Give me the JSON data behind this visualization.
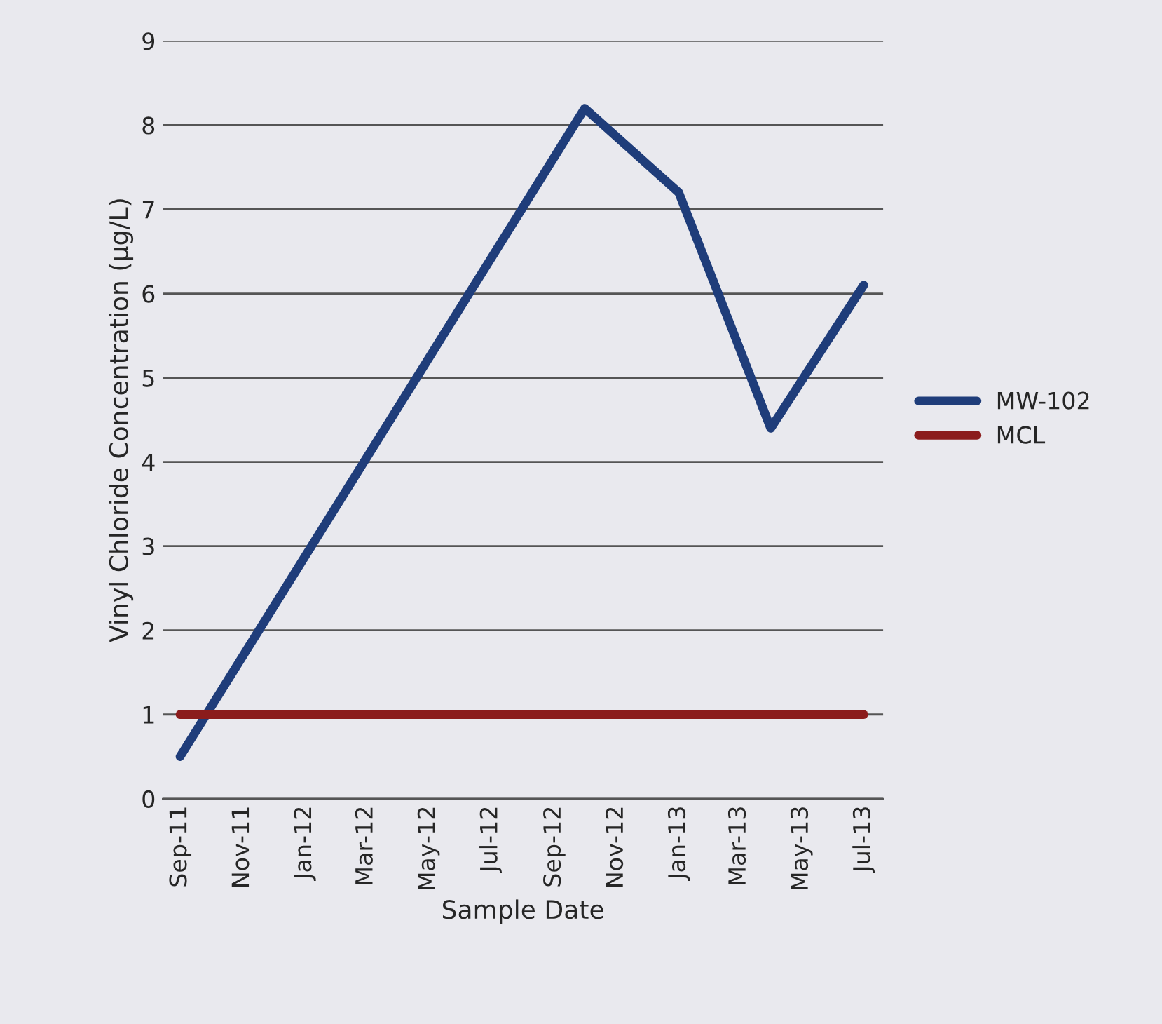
{
  "chart_data": {
    "type": "line",
    "xlabel": "Sample Date",
    "ylabel": "Vinyl Chloride Concentration (µg/L)",
    "series": [
      {
        "name": "MW-102",
        "color": "#1f3d7a",
        "x": [
          "2011-09-01",
          "2012-10-01",
          "2013-01-01",
          "2013-04-01",
          "2013-07-01"
        ],
        "values": [
          0.5,
          8.2,
          7.2,
          4.4,
          6.1
        ]
      },
      {
        "name": "MCL",
        "color": "#8b1c1c",
        "x": [
          "2011-09-01",
          "2012-10-01",
          "2013-01-01",
          "2013-04-01",
          "2013-07-01"
        ],
        "values": [
          1,
          1,
          1,
          1,
          1
        ]
      }
    ],
    "xlim": [
      "2011-08-15",
      "2013-07-20"
    ],
    "xticks": [
      {
        "value": "2011-09-01",
        "label": "Sep-11"
      },
      {
        "value": "2011-11-01",
        "label": "Nov-11"
      },
      {
        "value": "2012-01-01",
        "label": "Jan-12"
      },
      {
        "value": "2012-03-01",
        "label": "Mar-12"
      },
      {
        "value": "2012-05-01",
        "label": "May-12"
      },
      {
        "value": "2012-07-01",
        "label": "Jul-12"
      },
      {
        "value": "2012-09-01",
        "label": "Sep-12"
      },
      {
        "value": "2012-11-01",
        "label": "Nov-12"
      },
      {
        "value": "2013-01-01",
        "label": "Jan-13"
      },
      {
        "value": "2013-03-01",
        "label": "Mar-13"
      },
      {
        "value": "2013-05-01",
        "label": "May-13"
      },
      {
        "value": "2013-07-01",
        "label": "Jul-13"
      }
    ],
    "ylim": [
      0,
      9
    ],
    "yticks": [
      0,
      1,
      2,
      3,
      4,
      5,
      6,
      7,
      8,
      9
    ],
    "grid": "y",
    "legend": "right",
    "marker": "none",
    "line_style": "solid"
  }
}
